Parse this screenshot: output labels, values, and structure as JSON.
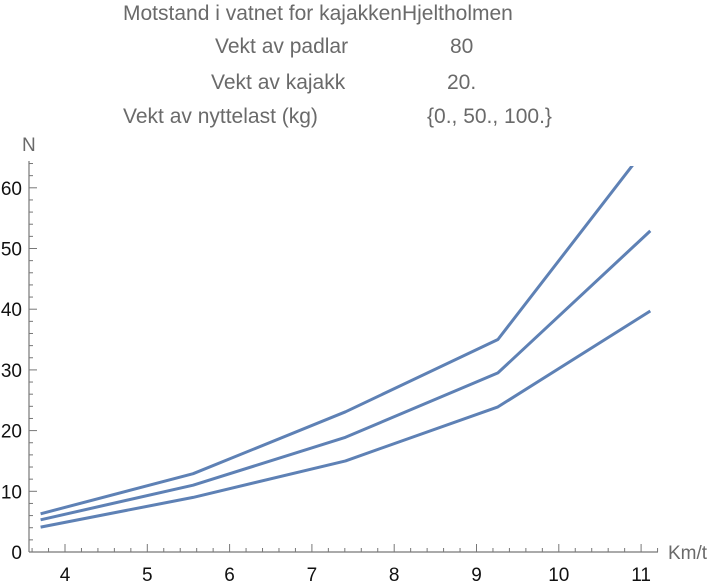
{
  "header": {
    "title": "Motstand i vatnet for kajakkenHjeltholmen",
    "rows": [
      {
        "label": "Vekt av padlar",
        "value": "80"
      },
      {
        "label": "Vekt av kajakk",
        "value": "20."
      },
      {
        "label": "Vekt av nyttelast (kg)",
        "value": "{0., 50., 100.}"
      }
    ]
  },
  "chart_data": {
    "type": "line",
    "title": "Motstand i vatnet for kajakkenHjeltholmen",
    "xlabel": "Km/t",
    "ylabel": "N",
    "xlim": [
      3.56,
      11.2
    ],
    "ylim": [
      0,
      64
    ],
    "x_ticks": [
      "4",
      "5",
      "6",
      "7",
      "8",
      "9",
      "10",
      "11"
    ],
    "y_ticks": [
      "0",
      "10",
      "20",
      "30",
      "40",
      "50",
      "60"
    ],
    "grid": false,
    "x": [
      3.704,
      5.556,
      7.408,
      9.26,
      11.112
    ],
    "series": [
      {
        "values": [
          6.3,
          12.9,
          23.1,
          35.0,
          67.5
        ]
      },
      {
        "values": [
          5.3,
          11.0,
          18.9,
          29.5,
          52.9
        ]
      },
      {
        "values": [
          4.1,
          9.0,
          15.0,
          23.9,
          39.7
        ]
      }
    ],
    "line_color": "#5e81b5"
  }
}
